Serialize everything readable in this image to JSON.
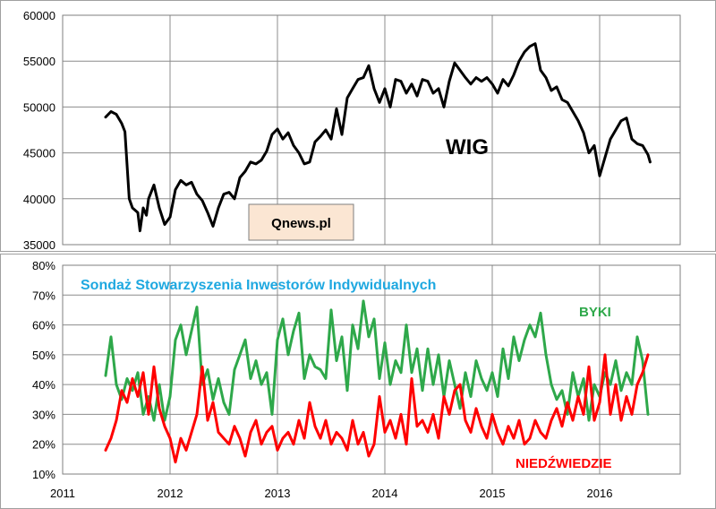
{
  "chart_data": [
    {
      "type": "line",
      "title": "",
      "annotation": "WIG",
      "watermark": "Qnews.pl",
      "ylim": [
        35000,
        60000
      ],
      "yticks": [
        "35000",
        "40000",
        "45000",
        "50000",
        "55000",
        "60000"
      ],
      "xlim": [
        2011.0,
        2016.75
      ],
      "grid": true,
      "series": [
        {
          "name": "WIG",
          "color": "#000000",
          "x": [
            2011.4,
            2011.45,
            2011.5,
            2011.55,
            2011.58,
            2011.62,
            2011.65,
            2011.7,
            2011.72,
            2011.75,
            2011.78,
            2011.8,
            2011.85,
            2011.9,
            2011.95,
            2012.0,
            2012.05,
            2012.1,
            2012.15,
            2012.2,
            2012.25,
            2012.3,
            2012.35,
            2012.4,
            2012.45,
            2012.5,
            2012.55,
            2012.6,
            2012.65,
            2012.7,
            2012.75,
            2012.8,
            2012.85,
            2012.9,
            2012.95,
            2013.0,
            2013.05,
            2013.1,
            2013.15,
            2013.2,
            2013.25,
            2013.3,
            2013.35,
            2013.4,
            2013.45,
            2013.5,
            2013.55,
            2013.6,
            2013.65,
            2013.7,
            2013.75,
            2013.8,
            2013.85,
            2013.9,
            2013.95,
            2014.0,
            2014.05,
            2014.1,
            2014.15,
            2014.2,
            2014.25,
            2014.3,
            2014.35,
            2014.4,
            2014.45,
            2014.5,
            2014.55,
            2014.6,
            2014.65,
            2014.7,
            2014.75,
            2014.8,
            2014.85,
            2014.9,
            2014.95,
            2015.0,
            2015.05,
            2015.1,
            2015.15,
            2015.2,
            2015.25,
            2015.3,
            2015.35,
            2015.4,
            2015.45,
            2015.5,
            2015.55,
            2015.6,
            2015.65,
            2015.7,
            2015.75,
            2015.8,
            2015.85,
            2015.9,
            2015.95,
            2016.0,
            2016.05,
            2016.1,
            2016.15,
            2016.2,
            2016.25,
            2016.3,
            2016.35,
            2016.4,
            2016.45,
            2016.47
          ],
          "y": [
            48900,
            49500,
            49200,
            48200,
            47300,
            40000,
            39000,
            38500,
            36500,
            39000,
            38200,
            40000,
            41500,
            39000,
            37200,
            38000,
            41000,
            42000,
            41500,
            41800,
            40500,
            39800,
            38500,
            37000,
            39000,
            40500,
            40700,
            40000,
            42300,
            43000,
            44000,
            43800,
            44200,
            45200,
            47000,
            47600,
            46500,
            47200,
            45800,
            45000,
            43800,
            44000,
            46200,
            46800,
            47500,
            46500,
            49800,
            47000,
            51000,
            52000,
            53000,
            53200,
            54500,
            52000,
            50500,
            52000,
            50000,
            53000,
            52800,
            51500,
            52500,
            51200,
            53000,
            52800,
            51500,
            52000,
            50000,
            52800,
            54800,
            54000,
            53200,
            52500,
            53200,
            52800,
            53200,
            52500,
            51500,
            53000,
            52300,
            53500,
            55000,
            56000,
            56600,
            56900,
            54000,
            53200,
            51800,
            52200,
            50800,
            50500,
            49500,
            48500,
            47200,
            45000,
            45800,
            42500,
            44500,
            46500,
            47500,
            48500,
            48800,
            46500,
            46000,
            45800,
            44800,
            44000
          ]
        }
      ]
    },
    {
      "type": "line",
      "title": "Sondaż Stowarzyszenia Inwestorów Indywidualnych",
      "ylim": [
        10,
        80
      ],
      "yticks": [
        "10%",
        "20%",
        "30%",
        "40%",
        "50%",
        "60%",
        "70%",
        "80%"
      ],
      "xlim": [
        2011.0,
        2016.75
      ],
      "xticks": [
        "2011",
        "2012",
        "2013",
        "2014",
        "2015",
        "2016"
      ],
      "grid": true,
      "series": [
        {
          "name": "BYKI",
          "color": "#2ea84a",
          "x": [
            2011.4,
            2011.45,
            2011.5,
            2011.55,
            2011.6,
            2011.65,
            2011.7,
            2011.75,
            2011.8,
            2011.85,
            2011.9,
            2011.95,
            2012.0,
            2012.05,
            2012.1,
            2012.15,
            2012.2,
            2012.25,
            2012.3,
            2012.35,
            2012.4,
            2012.45,
            2012.5,
            2012.55,
            2012.6,
            2012.65,
            2012.7,
            2012.75,
            2012.8,
            2012.85,
            2012.9,
            2012.95,
            2013.0,
            2013.05,
            2013.1,
            2013.15,
            2013.2,
            2013.25,
            2013.3,
            2013.35,
            2013.4,
            2013.45,
            2013.5,
            2013.55,
            2013.6,
            2013.65,
            2013.7,
            2013.75,
            2013.8,
            2013.85,
            2013.9,
            2013.95,
            2014.0,
            2014.05,
            2014.1,
            2014.15,
            2014.2,
            2014.25,
            2014.3,
            2014.35,
            2014.4,
            2014.45,
            2014.5,
            2014.55,
            2014.6,
            2014.65,
            2014.7,
            2014.75,
            2014.8,
            2014.85,
            2014.9,
            2014.95,
            2015.0,
            2015.05,
            2015.1,
            2015.15,
            2015.2,
            2015.25,
            2015.3,
            2015.35,
            2015.4,
            2015.45,
            2015.5,
            2015.55,
            2015.6,
            2015.65,
            2015.7,
            2015.75,
            2015.8,
            2015.85,
            2015.9,
            2015.95,
            2016.0,
            2016.05,
            2016.1,
            2016.15,
            2016.2,
            2016.25,
            2016.3,
            2016.35,
            2016.4,
            2016.45
          ],
          "y": [
            43,
            56,
            40,
            35,
            42,
            38,
            44,
            30,
            36,
            28,
            40,
            28,
            36,
            55,
            60,
            50,
            58,
            66,
            40,
            45,
            35,
            42,
            34,
            30,
            45,
            50,
            55,
            42,
            48,
            40,
            44,
            30,
            55,
            62,
            50,
            58,
            64,
            42,
            50,
            46,
            45,
            42,
            65,
            48,
            56,
            38,
            60,
            52,
            68,
            56,
            62,
            42,
            54,
            40,
            48,
            44,
            60,
            44,
            52,
            38,
            52,
            40,
            50,
            36,
            48,
            40,
            32,
            44,
            36,
            48,
            42,
            38,
            44,
            36,
            52,
            42,
            56,
            48,
            55,
            60,
            56,
            64,
            50,
            40,
            35,
            38,
            30,
            44,
            36,
            42,
            28,
            40,
            36,
            44,
            40,
            48,
            38,
            44,
            40,
            56,
            48,
            30
          ]
        },
        {
          "name": "NIEDŹWIEDZIE",
          "color": "#ff0000",
          "x": [
            2011.4,
            2011.45,
            2011.5,
            2011.55,
            2011.6,
            2011.65,
            2011.7,
            2011.75,
            2011.8,
            2011.85,
            2011.9,
            2011.95,
            2012.0,
            2012.05,
            2012.1,
            2012.15,
            2012.2,
            2012.25,
            2012.3,
            2012.35,
            2012.4,
            2012.45,
            2012.5,
            2012.55,
            2012.6,
            2012.65,
            2012.7,
            2012.75,
            2012.8,
            2012.85,
            2012.9,
            2012.95,
            2013.0,
            2013.05,
            2013.1,
            2013.15,
            2013.2,
            2013.25,
            2013.3,
            2013.35,
            2013.4,
            2013.45,
            2013.5,
            2013.55,
            2013.6,
            2013.65,
            2013.7,
            2013.75,
            2013.8,
            2013.85,
            2013.9,
            2013.95,
            2014.0,
            2014.05,
            2014.1,
            2014.15,
            2014.2,
            2014.25,
            2014.3,
            2014.35,
            2014.4,
            2014.45,
            2014.5,
            2014.55,
            2014.6,
            2014.65,
            2014.7,
            2014.75,
            2014.8,
            2014.85,
            2014.9,
            2014.95,
            2015.0,
            2015.05,
            2015.1,
            2015.15,
            2015.2,
            2015.25,
            2015.3,
            2015.35,
            2015.4,
            2015.45,
            2015.5,
            2015.55,
            2015.6,
            2015.65,
            2015.7,
            2015.75,
            2015.8,
            2015.85,
            2015.9,
            2015.95,
            2016.0,
            2016.05,
            2016.1,
            2016.15,
            2016.2,
            2016.25,
            2016.3,
            2016.35,
            2016.4,
            2016.45
          ],
          "y": [
            18,
            22,
            28,
            38,
            34,
            42,
            36,
            44,
            30,
            46,
            32,
            26,
            22,
            14,
            22,
            18,
            24,
            30,
            46,
            28,
            34,
            24,
            22,
            20,
            26,
            22,
            16,
            24,
            28,
            20,
            24,
            26,
            18,
            22,
            24,
            20,
            28,
            22,
            34,
            26,
            22,
            28,
            20,
            24,
            22,
            18,
            28,
            20,
            24,
            16,
            20,
            36,
            24,
            28,
            22,
            30,
            20,
            42,
            26,
            28,
            24,
            30,
            22,
            36,
            30,
            38,
            40,
            28,
            24,
            32,
            26,
            22,
            30,
            24,
            20,
            26,
            22,
            28,
            20,
            22,
            28,
            24,
            22,
            28,
            32,
            26,
            34,
            28,
            36,
            30,
            46,
            28,
            34,
            50,
            30,
            40,
            28,
            36,
            30,
            40,
            44,
            50
          ]
        }
      ]
    }
  ]
}
